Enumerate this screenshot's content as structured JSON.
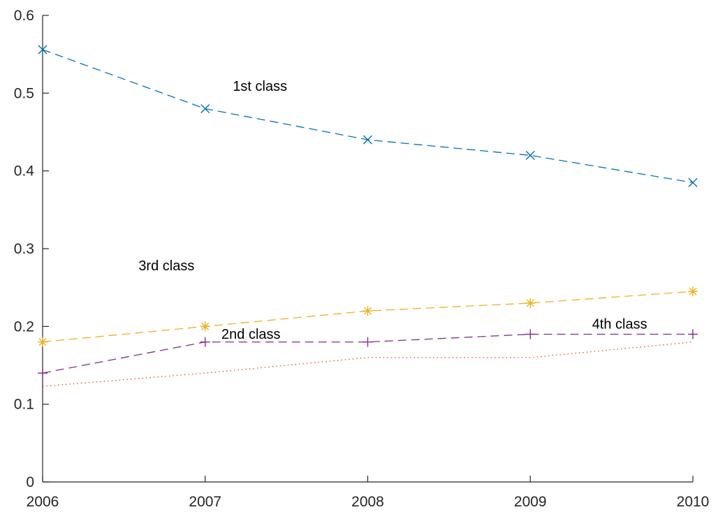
{
  "chart_data": {
    "type": "line",
    "title": "",
    "xlabel": "",
    "ylabel": "",
    "x": [
      2006,
      2007,
      2008,
      2009,
      2010
    ],
    "xlim": [
      2006,
      2010
    ],
    "ylim": [
      0,
      0.6
    ],
    "xticks": [
      2006,
      2007,
      2008,
      2009,
      2010
    ],
    "yticks": [
      0,
      0.1,
      0.2,
      0.3,
      0.4,
      0.5,
      0.6
    ],
    "xtick_labels": [
      "2006",
      "2007",
      "2008",
      "2009",
      "2010"
    ],
    "ytick_labels": [
      "0",
      "0.1",
      "0.2",
      "0.3",
      "0.4",
      "0.5",
      "0.6"
    ],
    "grid": false,
    "legend": "none",
    "series": [
      {
        "key": "first",
        "values": [
          0.556,
          0.48,
          0.44,
          0.42,
          0.385
        ],
        "color": "#0072BD",
        "dash": "dashed",
        "marker": "x"
      },
      {
        "key": "second",
        "values": [
          0.123,
          0.14,
          0.16,
          0.16,
          0.18
        ],
        "color": "#D95319",
        "dash": "dotted",
        "marker": "none"
      },
      {
        "key": "third",
        "values": [
          0.18,
          0.2,
          0.22,
          0.23,
          0.245
        ],
        "color": "#EDB120",
        "dash": "dashed",
        "marker": "asterisk"
      },
      {
        "key": "fourth",
        "values": [
          0.14,
          0.18,
          0.18,
          0.19,
          0.19
        ],
        "color": "#7E2F8E",
        "dash": "dashed",
        "marker": "plus"
      }
    ],
    "annotations": [
      {
        "text": "1st class",
        "x": 2007.17,
        "y": 0.503
      },
      {
        "text": "3rd class",
        "x": 2006.59,
        "y": 0.272
      },
      {
        "text": "4th class",
        "x": 2009.38,
        "y": 0.197
      },
      {
        "text": "2nd class",
        "x": 2007.1,
        "y": 0.184
      }
    ]
  }
}
